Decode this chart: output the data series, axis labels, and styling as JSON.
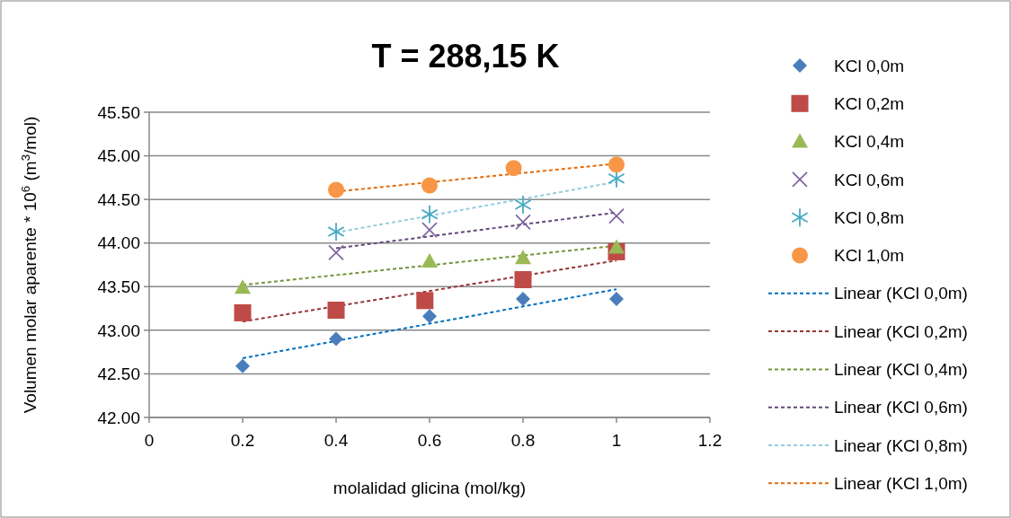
{
  "chart_data": {
    "type": "scatter",
    "title": "T = 288,15 K",
    "xlabel": "molalidad glicina (mol/kg)",
    "ylabel": "Volumen molar aparente * 10$^{6}$ (m$^{3}$/mol)",
    "xlim": [
      0,
      1.2
    ],
    "xticks": [
      0,
      0.2,
      0.4,
      0.6,
      0.8,
      1,
      1.2
    ],
    "ylim": [
      42,
      45.5
    ],
    "yticks": [
      {
        "value": 42,
        "label": "42.00"
      },
      {
        "value": 42.5,
        "label": "42.50"
      },
      {
        "value": 43,
        "label": "43.00"
      },
      {
        "value": 43.5,
        "label": "43.50"
      },
      {
        "value": 44,
        "label": "44.00"
      },
      {
        "value": 44.5,
        "label": "44.50"
      },
      {
        "value": 45,
        "label": "45.00"
      },
      {
        "value": 45.5,
        "label": "45.50"
      }
    ],
    "grid": "y",
    "legend": "right",
    "series": [
      {
        "name": "KCl 0,0m",
        "type": "scatter",
        "marker": "diamond",
        "color": "#4a7ebb",
        "x": [
          0.2,
          0.4,
          0.6,
          0.8,
          1.0
        ],
        "values": [
          42.59,
          42.9,
          43.16,
          43.36,
          43.36
        ]
      },
      {
        "name": "KCl 0,2m",
        "type": "scatter",
        "marker": "square",
        "color": "#be4b48",
        "x": [
          0.2,
          0.4,
          0.59,
          0.8,
          1.0
        ],
        "values": [
          43.2,
          43.23,
          43.34,
          43.58,
          43.9
        ]
      },
      {
        "name": "KCl 0,4m",
        "type": "scatter",
        "marker": "triangle",
        "color": "#98b954",
        "x": [
          0.2,
          0.6,
          0.8,
          1.0
        ],
        "values": [
          43.49,
          43.79,
          43.83,
          43.95
        ]
      },
      {
        "name": "KCl 0,6m",
        "type": "scatter",
        "marker": "cross",
        "color": "#7d60a0",
        "x": [
          0.4,
          0.6,
          0.8,
          1.0
        ],
        "values": [
          43.89,
          44.15,
          44.24,
          44.31
        ]
      },
      {
        "name": "KCl 0,8m",
        "type": "scatter",
        "marker": "star",
        "color": "#46aac5",
        "x": [
          0.4,
          0.6,
          0.8,
          1.0
        ],
        "values": [
          44.13,
          44.33,
          44.44,
          44.74
        ]
      },
      {
        "name": "KCl 1,0m",
        "type": "scatter",
        "marker": "circle",
        "color": "#f79646",
        "x": [
          0.4,
          0.6,
          0.78,
          1.0
        ],
        "values": [
          44.61,
          44.66,
          44.86,
          44.9
        ]
      },
      {
        "name": "Linear (KCl 0,0m)",
        "type": "line",
        "marker": "none",
        "line_style": "dashed",
        "color": "#0070c0",
        "x": [
          0.2,
          1.0
        ],
        "values": [
          42.68,
          43.47
        ]
      },
      {
        "name": "Linear (KCl 0,2m)",
        "type": "line",
        "marker": "none",
        "line_style": "dashed",
        "color": "#953735",
        "x": [
          0.2,
          1.0
        ],
        "values": [
          43.1,
          43.8
        ]
      },
      {
        "name": "Linear (KCl 0,4m)",
        "type": "line",
        "marker": "none",
        "line_style": "dashed",
        "color": "#77933c",
        "x": [
          0.2,
          1.0
        ],
        "values": [
          43.52,
          43.97
        ]
      },
      {
        "name": "Linear (KCl 0,6m)",
        "type": "line",
        "marker": "none",
        "line_style": "dashed",
        "color": "#604a7b",
        "x": [
          0.4,
          1.0
        ],
        "values": [
          43.94,
          44.35
        ]
      },
      {
        "name": "Linear (KCl 0,8m)",
        "type": "line",
        "marker": "none",
        "line_style": "dashed",
        "color": "#93cddd",
        "x": [
          0.4,
          1.0
        ],
        "values": [
          44.12,
          44.7
        ]
      },
      {
        "name": "Linear (KCl 1,0m)",
        "type": "line",
        "marker": "none",
        "line_style": "dashed",
        "color": "#e46c0a",
        "x": [
          0.4,
          1.0
        ],
        "values": [
          44.59,
          44.91
        ]
      }
    ]
  }
}
